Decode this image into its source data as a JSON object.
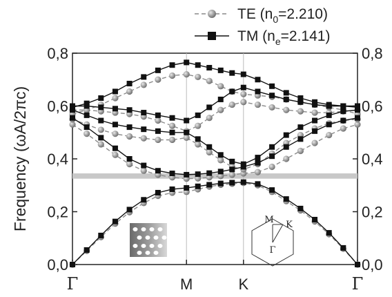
{
  "chart_data": {
    "type": "line",
    "title": "",
    "xlabel": "",
    "ylabel": "Frequency (ωA/2πc)",
    "x_ticks": [
      "Γ",
      "M",
      "K",
      "Γ"
    ],
    "x_tick_positions": [
      0,
      1,
      1.5,
      2.5
    ],
    "xlim": [
      0,
      2.5
    ],
    "ylim": [
      0,
      0.8
    ],
    "y_ticks": [
      "0,0",
      "0,2",
      "0,4",
      "0,6",
      "0,8"
    ],
    "y_tick_values": [
      0,
      0.2,
      0.4,
      0.6,
      0.8
    ],
    "legend_position": "top-right",
    "band_gap": {
      "from": 0.325,
      "to": 0.345,
      "color": "#c8c8c8"
    },
    "series": [
      {
        "name_main": "TE (n",
        "name_sub": "0",
        "name_end": "=2.210)",
        "style": "dashed-gray-circles",
        "bands": [
          [
            [
              0,
              0
            ],
            [
              0.125,
              0.052
            ],
            [
              0.25,
              0.104
            ],
            [
              0.375,
              0.155
            ],
            [
              0.5,
              0.198
            ],
            [
              0.625,
              0.233
            ],
            [
              0.75,
              0.26
            ],
            [
              0.875,
              0.272
            ],
            [
              1,
              0.275
            ],
            [
              1.1,
              0.285
            ],
            [
              1.2,
              0.295
            ],
            [
              1.3,
              0.302
            ],
            [
              1.4,
              0.306
            ],
            [
              1.5,
              0.309
            ],
            [
              1.625,
              0.3
            ],
            [
              1.75,
              0.275
            ],
            [
              1.875,
              0.24
            ],
            [
              2,
              0.205
            ],
            [
              2.125,
              0.163
            ],
            [
              2.25,
              0.115
            ],
            [
              2.375,
              0.06
            ],
            [
              2.5,
              0
            ]
          ],
          [
            [
              0,
              0.53
            ],
            [
              0.125,
              0.495
            ],
            [
              0.25,
              0.455
            ],
            [
              0.375,
              0.415
            ],
            [
              0.5,
              0.38
            ],
            [
              0.625,
              0.355
            ],
            [
              0.75,
              0.34
            ],
            [
              0.875,
              0.33
            ],
            [
              1,
              0.325
            ],
            [
              1.1,
              0.326
            ],
            [
              1.2,
              0.33
            ],
            [
              1.3,
              0.335
            ],
            [
              1.4,
              0.34
            ],
            [
              1.5,
              0.345
            ],
            [
              1.625,
              0.35
            ],
            [
              1.75,
              0.37
            ],
            [
              1.875,
              0.4
            ],
            [
              2,
              0.43
            ],
            [
              2.125,
              0.46
            ],
            [
              2.25,
              0.49
            ],
            [
              2.375,
              0.515
            ],
            [
              2.5,
              0.53
            ]
          ],
          [
            [
              0,
              0.55
            ],
            [
              0.125,
              0.53
            ],
            [
              0.25,
              0.51
            ],
            [
              0.375,
              0.495
            ],
            [
              0.5,
              0.485
            ],
            [
              0.625,
              0.478
            ],
            [
              0.75,
              0.472
            ],
            [
              0.875,
              0.472
            ],
            [
              1,
              0.48
            ],
            [
              1.1,
              0.455
            ],
            [
              1.2,
              0.425
            ],
            [
              1.3,
              0.395
            ],
            [
              1.4,
              0.37
            ],
            [
              1.5,
              0.36
            ],
            [
              1.625,
              0.38
            ],
            [
              1.75,
              0.42
            ],
            [
              1.875,
              0.46
            ],
            [
              2,
              0.49
            ],
            [
              2.125,
              0.515
            ],
            [
              2.25,
              0.535
            ],
            [
              2.375,
              0.545
            ],
            [
              2.5,
              0.55
            ]
          ],
          [
            [
              0,
              0.585
            ],
            [
              0.125,
              0.585
            ],
            [
              0.25,
              0.58
            ],
            [
              0.375,
              0.575
            ],
            [
              0.5,
              0.57
            ],
            [
              0.625,
              0.56
            ],
            [
              0.75,
              0.545
            ],
            [
              0.875,
              0.525
            ],
            [
              1,
              0.505
            ],
            [
              1.1,
              0.525
            ],
            [
              1.2,
              0.555
            ],
            [
              1.3,
              0.585
            ],
            [
              1.4,
              0.605
            ],
            [
              1.5,
              0.615
            ],
            [
              1.625,
              0.605
            ],
            [
              1.75,
              0.595
            ],
            [
              1.875,
              0.585
            ],
            [
              2,
              0.58
            ],
            [
              2.125,
              0.575
            ],
            [
              2.25,
              0.575
            ],
            [
              2.375,
              0.58
            ],
            [
              2.5,
              0.585
            ]
          ],
          [
            [
              0,
              0.57
            ],
            [
              0.125,
              0.585
            ],
            [
              0.25,
              0.605
            ],
            [
              0.375,
              0.63
            ],
            [
              0.5,
              0.655
            ],
            [
              0.625,
              0.68
            ],
            [
              0.75,
              0.7
            ],
            [
              0.875,
              0.715
            ],
            [
              1,
              0.72
            ],
            [
              1.1,
              0.71
            ],
            [
              1.2,
              0.695
            ],
            [
              1.3,
              0.675
            ],
            [
              1.4,
              0.655
            ],
            [
              1.5,
              0.645
            ],
            [
              1.625,
              0.64
            ],
            [
              1.75,
              0.635
            ],
            [
              1.875,
              0.625
            ],
            [
              2,
              0.615
            ],
            [
              2.125,
              0.605
            ],
            [
              2.25,
              0.595
            ],
            [
              2.375,
              0.585
            ],
            [
              2.5,
              0.57
            ]
          ]
        ]
      },
      {
        "name_main": "TM (n",
        "name_sub": "e",
        "name_end": "=2.141)",
        "style": "solid-black-squares",
        "bands": [
          [
            [
              0,
              0
            ],
            [
              0.125,
              0.055
            ],
            [
              0.25,
              0.11
            ],
            [
              0.375,
              0.163
            ],
            [
              0.5,
              0.208
            ],
            [
              0.625,
              0.245
            ],
            [
              0.75,
              0.272
            ],
            [
              0.875,
              0.285
            ],
            [
              1,
              0.29
            ],
            [
              1.1,
              0.296
            ],
            [
              1.2,
              0.302
            ],
            [
              1.3,
              0.307
            ],
            [
              1.4,
              0.31
            ],
            [
              1.5,
              0.312
            ],
            [
              1.625,
              0.305
            ],
            [
              1.75,
              0.282
            ],
            [
              1.875,
              0.248
            ],
            [
              2,
              0.212
            ],
            [
              2.125,
              0.17
            ],
            [
              2.25,
              0.12
            ],
            [
              2.375,
              0.063
            ],
            [
              2.5,
              0
            ]
          ],
          [
            [
              0,
              0.555
            ],
            [
              0.125,
              0.52
            ],
            [
              0.25,
              0.48
            ],
            [
              0.375,
              0.44
            ],
            [
              0.5,
              0.4
            ],
            [
              0.625,
              0.375
            ],
            [
              0.75,
              0.355
            ],
            [
              0.875,
              0.345
            ],
            [
              1,
              0.34
            ],
            [
              1.1,
              0.342
            ],
            [
              1.2,
              0.346
            ],
            [
              1.3,
              0.352
            ],
            [
              1.4,
              0.36
            ],
            [
              1.5,
              0.37
            ],
            [
              1.625,
              0.385
            ],
            [
              1.75,
              0.41
            ],
            [
              1.875,
              0.445
            ],
            [
              2,
              0.475
            ],
            [
              2.125,
              0.505
            ],
            [
              2.25,
              0.53
            ],
            [
              2.375,
              0.545
            ],
            [
              2.5,
              0.555
            ]
          ],
          [
            [
              0,
              0.585
            ],
            [
              0.125,
              0.565
            ],
            [
              0.25,
              0.545
            ],
            [
              0.375,
              0.53
            ],
            [
              0.5,
              0.52
            ],
            [
              0.625,
              0.512
            ],
            [
              0.75,
              0.505
            ],
            [
              0.875,
              0.5
            ],
            [
              1,
              0.5
            ],
            [
              1.1,
              0.475
            ],
            [
              1.2,
              0.445
            ],
            [
              1.3,
              0.415
            ],
            [
              1.4,
              0.39
            ],
            [
              1.5,
              0.38
            ],
            [
              1.625,
              0.405
            ],
            [
              1.75,
              0.445
            ],
            [
              1.875,
              0.49
            ],
            [
              2,
              0.52
            ],
            [
              2.125,
              0.545
            ],
            [
              2.25,
              0.565
            ],
            [
              2.375,
              0.58
            ],
            [
              2.5,
              0.585
            ]
          ],
          [
            [
              0,
              0.6
            ],
            [
              0.125,
              0.6
            ],
            [
              0.25,
              0.595
            ],
            [
              0.375,
              0.59
            ],
            [
              0.5,
              0.585
            ],
            [
              0.625,
              0.575
            ],
            [
              0.75,
              0.565
            ],
            [
              0.875,
              0.555
            ],
            [
              1,
              0.545
            ],
            [
              1.1,
              0.565
            ],
            [
              1.2,
              0.595
            ],
            [
              1.3,
              0.625
            ],
            [
              1.4,
              0.655
            ],
            [
              1.5,
              0.67
            ],
            [
              1.625,
              0.655
            ],
            [
              1.75,
              0.64
            ],
            [
              1.875,
              0.625
            ],
            [
              2,
              0.615
            ],
            [
              2.125,
              0.605
            ],
            [
              2.25,
              0.6
            ],
            [
              2.375,
              0.6
            ],
            [
              2.5,
              0.6
            ]
          ],
          [
            [
              0,
              0.595
            ],
            [
              0.125,
              0.61
            ],
            [
              0.25,
              0.63
            ],
            [
              0.375,
              0.655
            ],
            [
              0.5,
              0.685
            ],
            [
              0.625,
              0.71
            ],
            [
              0.75,
              0.735
            ],
            [
              0.875,
              0.755
            ],
            [
              1,
              0.765
            ],
            [
              1.1,
              0.755
            ],
            [
              1.2,
              0.745
            ],
            [
              1.3,
              0.735
            ],
            [
              1.4,
              0.725
            ],
            [
              1.5,
              0.72
            ],
            [
              1.625,
              0.7
            ],
            [
              1.75,
              0.675
            ],
            [
              1.875,
              0.65
            ],
            [
              2,
              0.63
            ],
            [
              2.125,
              0.615
            ],
            [
              2.25,
              0.605
            ],
            [
              2.375,
              0.6
            ],
            [
              2.5,
              0.595
            ]
          ]
        ]
      }
    ],
    "inset_bz_labels": [
      "M",
      "K",
      "Γ"
    ]
  }
}
